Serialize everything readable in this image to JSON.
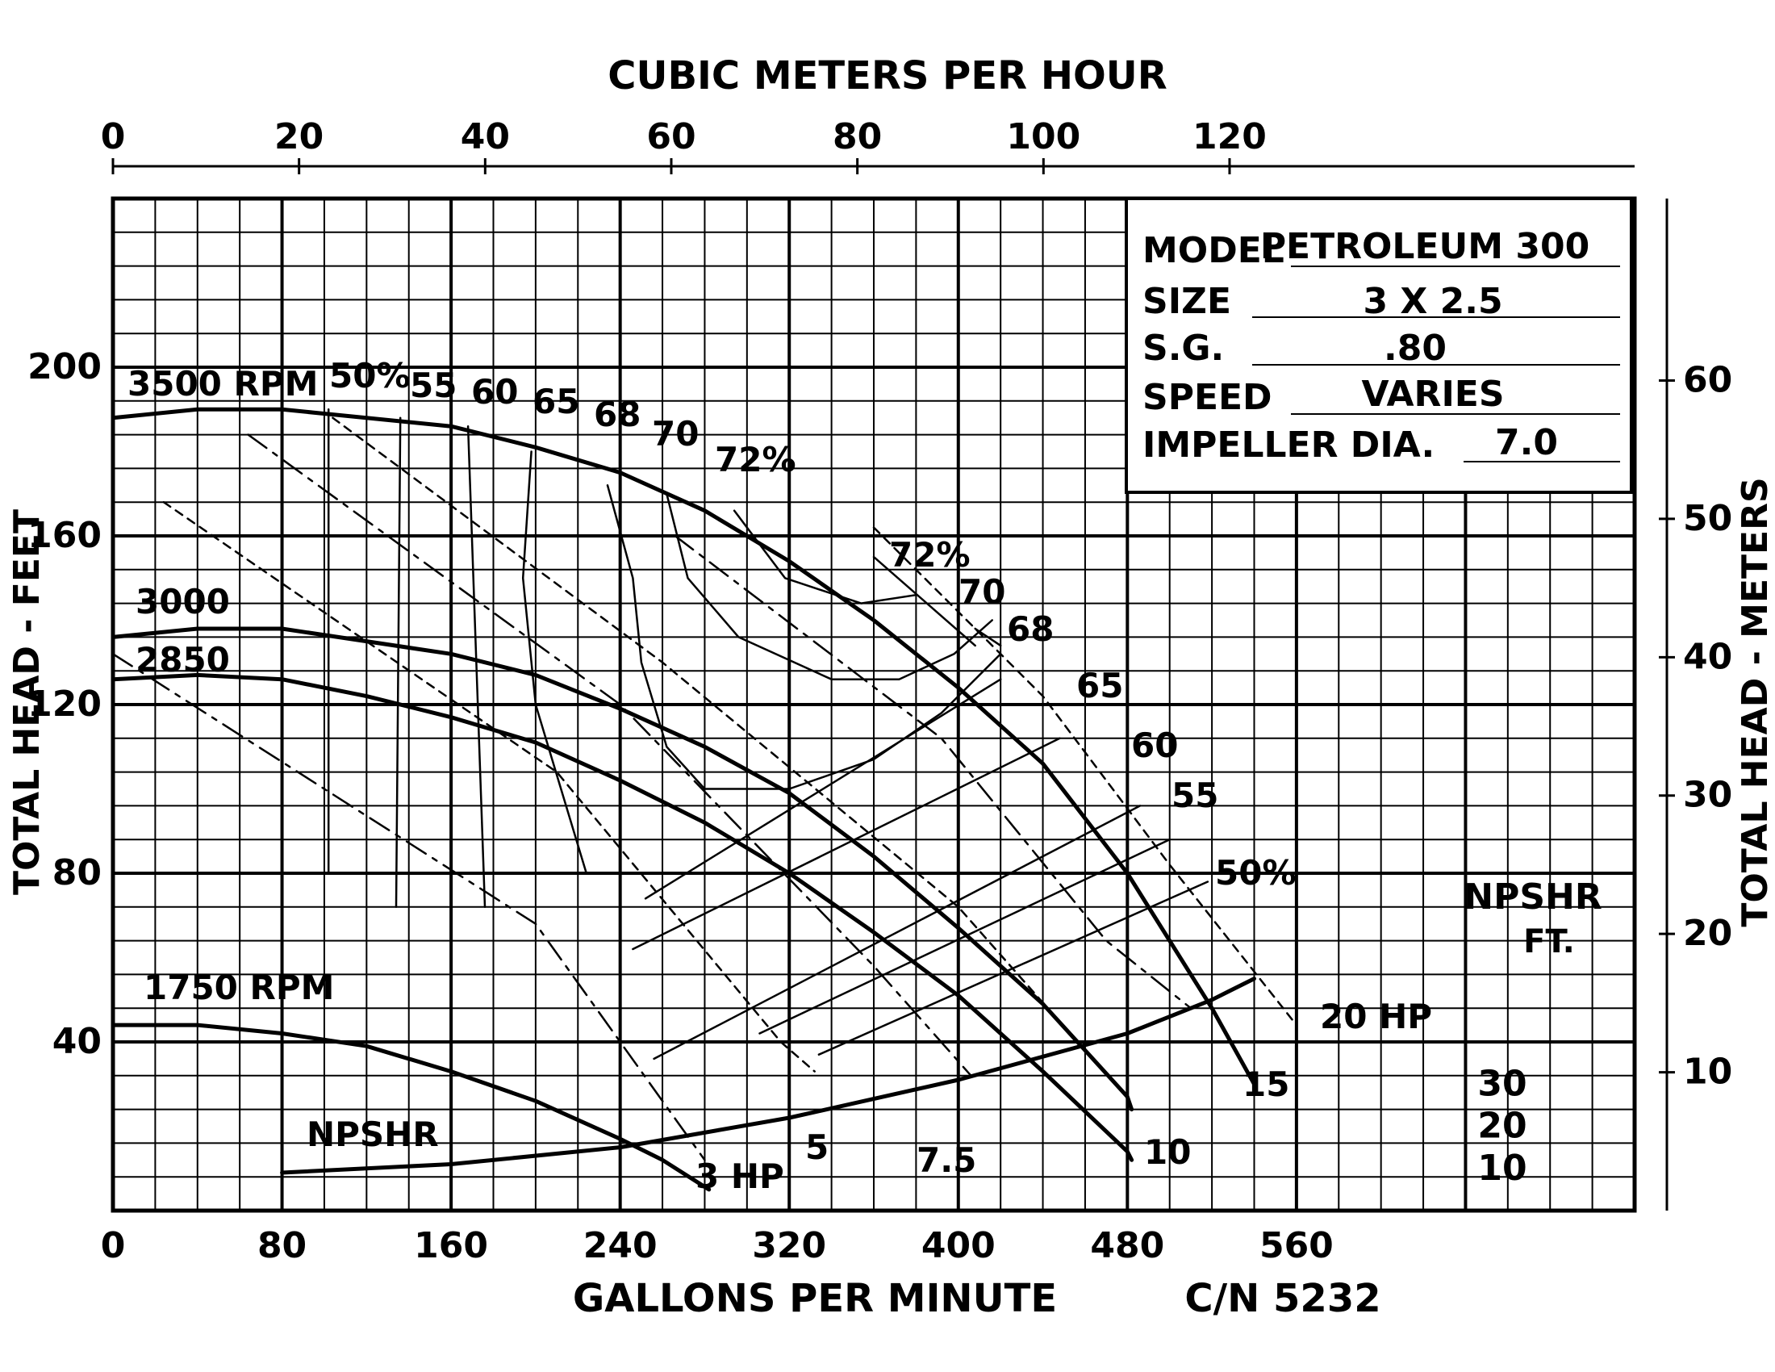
{
  "chart_data": {
    "type": "line",
    "title": "",
    "xlabel": "GALLONS PER MINUTE",
    "x2label": "CUBIC METERS PER HOUR",
    "ylabel": "TOTAL HEAD - FEET",
    "y2label": "TOTAL HEAD - METERS",
    "xlim": [
      0,
      720
    ],
    "ylim": [
      0,
      240
    ],
    "x_ticks": [
      "0",
      "80",
      "160",
      "240",
      "320",
      "400",
      "480",
      "560"
    ],
    "x2_ticks": [
      "0",
      "20",
      "40",
      "60",
      "80",
      "100",
      "120"
    ],
    "y_ticks": [
      "40",
      "80",
      "120",
      "160",
      "200"
    ],
    "y2_ticks": [
      "10",
      "20",
      "30",
      "40",
      "50",
      "60"
    ],
    "npshr_ticks": [
      "10",
      "20",
      "30"
    ],
    "npshr_axis_label": "NPSHR",
    "npshr_axis_unit": "FT.",
    "grid": true,
    "curve_number": "C/N 5232",
    "spec_box": {
      "model_label": "MODEL",
      "model_value": "PETROLEUM 300",
      "size_label": "SIZE",
      "size_value": "3 X 2.5",
      "sg_label": "S.G.",
      "sg_value": ".80",
      "speed_label": "SPEED",
      "speed_value": "VARIES",
      "impeller_label": "IMPELLER DIA.",
      "impeller_value": "7.0"
    },
    "head_curves": [
      {
        "label": "3500 RPM",
        "points": [
          [
            0,
            188
          ],
          [
            40,
            190
          ],
          [
            80,
            190
          ],
          [
            160,
            186
          ],
          [
            200,
            181
          ],
          [
            240,
            175
          ],
          [
            280,
            166
          ],
          [
            320,
            154
          ],
          [
            360,
            140
          ],
          [
            400,
            124
          ],
          [
            440,
            106
          ],
          [
            480,
            80
          ],
          [
            520,
            48
          ],
          [
            540,
            30
          ]
        ]
      },
      {
        "label": "3000",
        "points": [
          [
            0,
            136
          ],
          [
            40,
            138
          ],
          [
            80,
            138
          ],
          [
            160,
            132
          ],
          [
            200,
            127
          ],
          [
            240,
            119
          ],
          [
            280,
            110
          ],
          [
            320,
            99
          ],
          [
            360,
            84
          ],
          [
            400,
            67
          ],
          [
            440,
            49
          ],
          [
            480,
            27
          ],
          [
            482,
            24
          ]
        ]
      },
      {
        "label": "2850",
        "points": [
          [
            0,
            126
          ],
          [
            40,
            127
          ],
          [
            80,
            126
          ],
          [
            120,
            122
          ],
          [
            160,
            117
          ],
          [
            200,
            111
          ],
          [
            240,
            102
          ],
          [
            280,
            92
          ],
          [
            320,
            80
          ],
          [
            360,
            66
          ],
          [
            400,
            51
          ],
          [
            440,
            33
          ],
          [
            480,
            14
          ],
          [
            482,
            12
          ]
        ]
      },
      {
        "label": "1750 RPM",
        "points": [
          [
            0,
            44
          ],
          [
            40,
            44
          ],
          [
            80,
            42
          ],
          [
            120,
            39
          ],
          [
            160,
            33
          ],
          [
            200,
            26
          ],
          [
            240,
            17
          ],
          [
            260,
            12
          ],
          [
            282,
            5
          ]
        ]
      }
    ],
    "npshr_curve": {
      "label": "NPSHR",
      "points": [
        [
          80,
          9
        ],
        [
          160,
          11
        ],
        [
          240,
          15
        ],
        [
          320,
          22
        ],
        [
          400,
          31
        ],
        [
          480,
          42
        ],
        [
          520,
          50
        ],
        [
          540,
          55
        ]
      ]
    },
    "efficiency_curves": [
      {
        "label": "50%",
        "points": [
          [
            102,
            190
          ],
          [
            102,
            80
          ]
        ]
      },
      {
        "label": "55",
        "points": [
          [
            136,
            188
          ],
          [
            134,
            72
          ]
        ]
      },
      {
        "label": "60",
        "points": [
          [
            168,
            186
          ],
          [
            176,
            72
          ]
        ]
      },
      {
        "label": "65",
        "points": [
          [
            198,
            180
          ],
          [
            194,
            150
          ],
          [
            200,
            120
          ],
          [
            212,
            100
          ],
          [
            224,
            80
          ]
        ]
      },
      {
        "label": "68",
        "points": [
          [
            234,
            172
          ],
          [
            246,
            150
          ],
          [
            250,
            130
          ],
          [
            262,
            110
          ],
          [
            280,
            100
          ],
          [
            320,
            100
          ],
          [
            360,
            107
          ],
          [
            392,
            118
          ],
          [
            420,
            132
          ]
        ]
      },
      {
        "label": "70",
        "points": [
          [
            262,
            170
          ],
          [
            272,
            150
          ],
          [
            296,
            136
          ],
          [
            340,
            126
          ],
          [
            372,
            126
          ],
          [
            398,
            132
          ],
          [
            416,
            140
          ]
        ]
      },
      {
        "label": "72%",
        "points": [
          [
            294,
            166
          ],
          [
            318,
            150
          ],
          [
            354,
            144
          ],
          [
            380,
            146
          ]
        ]
      }
    ],
    "efficiency_right_labels": [
      {
        "label": "72%",
        "points": [
          [
            360,
            155
          ],
          [
            408,
            134
          ]
        ]
      },
      {
        "label": "70",
        "points": [
          [
            408,
            138
          ],
          [
            420,
            134
          ]
        ]
      },
      {
        "label": "68",
        "points": [
          [
            420,
            126
          ],
          [
            252,
            74
          ]
        ]
      },
      {
        "label": "65",
        "points": [
          [
            448,
            112
          ],
          [
            246,
            62
          ]
        ]
      },
      {
        "label": "60",
        "points": [
          [
            486,
            96
          ],
          [
            256,
            36
          ]
        ]
      },
      {
        "label": "55",
        "points": [
          [
            500,
            88
          ],
          [
            306,
            42
          ]
        ]
      },
      {
        "label": "50%",
        "points": [
          [
            518,
            78
          ],
          [
            334,
            37
          ]
        ]
      }
    ],
    "hp_lines": [
      {
        "label": "3 HP",
        "points": [
          [
            0,
            132
          ],
          [
            200,
            68
          ],
          [
            280,
            12
          ]
        ]
      },
      {
        "label": "5",
        "points": [
          [
            24,
            168
          ],
          [
            210,
            104
          ],
          [
            316,
            40
          ],
          [
            332,
            33
          ]
        ]
      },
      {
        "label": "7.5",
        "points": [
          [
            64,
            184
          ],
          [
            240,
            120
          ],
          [
            360,
            58
          ],
          [
            406,
            32
          ]
        ]
      },
      {
        "label": "10",
        "points": [
          [
            104,
            188
          ],
          [
            260,
            130
          ],
          [
            400,
            72
          ],
          [
            474,
            30
          ]
        ]
      },
      {
        "label": "15",
        "points": [
          [
            266,
            160
          ],
          [
            392,
            112
          ],
          [
            470,
            64
          ],
          [
            510,
            48
          ]
        ]
      },
      {
        "label": "20 HP",
        "points": [
          [
            360,
            162
          ],
          [
            440,
            122
          ],
          [
            500,
            82
          ],
          [
            560,
            44
          ]
        ]
      }
    ]
  }
}
